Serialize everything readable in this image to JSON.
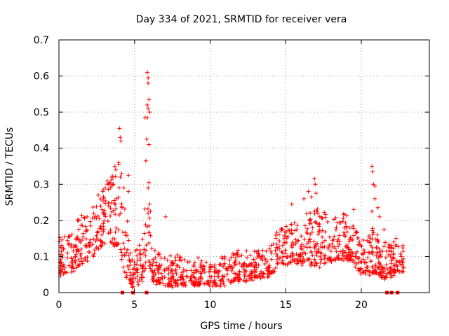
{
  "chart_data": {
    "type": "scatter",
    "title": "Day 334 of 2021, SRMTID for receiver vera",
    "xlabel": "GPS time / hours",
    "ylabel": "SRMTID / TECUs",
    "xlim": [
      0,
      24.5
    ],
    "ylim": [
      0,
      0.7
    ],
    "x_ticks": [
      0,
      5,
      10,
      15,
      20
    ],
    "x_tick_labels": [
      "0",
      "5",
      "10",
      "15",
      "20"
    ],
    "y_ticks": [
      0,
      0.1,
      0.2,
      0.3,
      0.4,
      0.5,
      0.6,
      0.7
    ],
    "y_tick_labels": [
      "0",
      "0.1",
      "0.2",
      "0.3",
      "0.4",
      "0.5",
      "0.6",
      "0.7"
    ],
    "grid": true,
    "marker": "plus",
    "color": "#ff0000",
    "gap_marker_color": "#ff0000",
    "gap_markers_x": [
      4.2,
      4.9,
      5.8,
      21.7,
      22.0,
      22.4
    ],
    "envelope": [
      {
        "x": 0.0,
        "lo": 0.05,
        "hi": 0.15
      },
      {
        "x": 0.5,
        "lo": 0.05,
        "hi": 0.16
      },
      {
        "x": 1.0,
        "lo": 0.06,
        "hi": 0.18
      },
      {
        "x": 1.5,
        "lo": 0.08,
        "hi": 0.22
      },
      {
        "x": 2.0,
        "lo": 0.09,
        "hi": 0.23
      },
      {
        "x": 2.5,
        "lo": 0.11,
        "hi": 0.26
      },
      {
        "x": 3.0,
        "lo": 0.13,
        "hi": 0.3
      },
      {
        "x": 3.5,
        "lo": 0.14,
        "hi": 0.33
      },
      {
        "x": 4.0,
        "lo": 0.12,
        "hi": 0.36
      },
      {
        "x": 4.3,
        "lo": 0.06,
        "hi": 0.3
      },
      {
        "x": 4.7,
        "lo": 0.02,
        "hi": 0.12
      },
      {
        "x": 5.0,
        "lo": 0.02,
        "hi": 0.13
      },
      {
        "x": 5.5,
        "lo": 0.03,
        "hi": 0.15
      },
      {
        "x": 5.8,
        "lo": 0.08,
        "hi": 0.3
      },
      {
        "x": 6.2,
        "lo": 0.03,
        "hi": 0.12
      },
      {
        "x": 7.0,
        "lo": 0.02,
        "hi": 0.11
      },
      {
        "x": 8.0,
        "lo": 0.02,
        "hi": 0.1
      },
      {
        "x": 9.0,
        "lo": 0.02,
        "hi": 0.1
      },
      {
        "x": 10.0,
        "lo": 0.02,
        "hi": 0.08
      },
      {
        "x": 11.0,
        "lo": 0.02,
        "hi": 0.1
      },
      {
        "x": 12.0,
        "lo": 0.03,
        "hi": 0.12
      },
      {
        "x": 13.0,
        "lo": 0.04,
        "hi": 0.12
      },
      {
        "x": 14.0,
        "lo": 0.05,
        "hi": 0.13
      },
      {
        "x": 14.5,
        "lo": 0.07,
        "hi": 0.18
      },
      {
        "x": 15.0,
        "lo": 0.08,
        "hi": 0.2
      },
      {
        "x": 16.0,
        "lo": 0.08,
        "hi": 0.21
      },
      {
        "x": 17.0,
        "lo": 0.07,
        "hi": 0.24
      },
      {
        "x": 18.0,
        "lo": 0.09,
        "hi": 0.21
      },
      {
        "x": 19.0,
        "lo": 0.09,
        "hi": 0.22
      },
      {
        "x": 19.5,
        "lo": 0.08,
        "hi": 0.2
      },
      {
        "x": 20.0,
        "lo": 0.05,
        "hi": 0.13
      },
      {
        "x": 20.5,
        "lo": 0.05,
        "hi": 0.17
      },
      {
        "x": 21.0,
        "lo": 0.06,
        "hi": 0.18
      },
      {
        "x": 21.3,
        "lo": 0.04,
        "hi": 0.12
      },
      {
        "x": 21.8,
        "lo": 0.04,
        "hi": 0.16
      },
      {
        "x": 22.5,
        "lo": 0.06,
        "hi": 0.13
      },
      {
        "x": 22.8,
        "lo": 0.06,
        "hi": 0.14
      }
    ],
    "sample_count": 1300,
    "outliers": [
      {
        "x": 4.0,
        "y": 0.455
      },
      {
        "x": 4.05,
        "y": 0.43
      },
      {
        "x": 4.1,
        "y": 0.42
      },
      {
        "x": 3.7,
        "y": 0.35
      },
      {
        "x": 3.95,
        "y": 0.36
      },
      {
        "x": 4.15,
        "y": 0.33
      },
      {
        "x": 4.6,
        "y": 0.325
      },
      {
        "x": 4.6,
        "y": 0.28
      },
      {
        "x": 4.3,
        "y": 0.29
      },
      {
        "x": 5.85,
        "y": 0.61
      },
      {
        "x": 5.9,
        "y": 0.595
      },
      {
        "x": 5.9,
        "y": 0.58
      },
      {
        "x": 5.95,
        "y": 0.535
      },
      {
        "x": 5.85,
        "y": 0.52
      },
      {
        "x": 5.9,
        "y": 0.51
      },
      {
        "x": 6.0,
        "y": 0.5
      },
      {
        "x": 5.7,
        "y": 0.485
      },
      {
        "x": 5.85,
        "y": 0.485
      },
      {
        "x": 5.8,
        "y": 0.425
      },
      {
        "x": 5.95,
        "y": 0.41
      },
      {
        "x": 5.75,
        "y": 0.365
      },
      {
        "x": 5.95,
        "y": 0.305
      },
      {
        "x": 5.9,
        "y": 0.29
      },
      {
        "x": 6.0,
        "y": 0.245
      },
      {
        "x": 6.05,
        "y": 0.225
      },
      {
        "x": 7.05,
        "y": 0.21
      },
      {
        "x": 16.5,
        "y": 0.28
      },
      {
        "x": 16.9,
        "y": 0.315
      },
      {
        "x": 16.95,
        "y": 0.3
      },
      {
        "x": 17.0,
        "y": 0.275
      },
      {
        "x": 16.7,
        "y": 0.265
      },
      {
        "x": 16.2,
        "y": 0.26
      },
      {
        "x": 15.4,
        "y": 0.245
      },
      {
        "x": 20.7,
        "y": 0.35
      },
      {
        "x": 20.75,
        "y": 0.335
      },
      {
        "x": 20.8,
        "y": 0.3
      },
      {
        "x": 20.9,
        "y": 0.295
      },
      {
        "x": 20.9,
        "y": 0.26
      },
      {
        "x": 21.1,
        "y": 0.235
      },
      {
        "x": 20.7,
        "y": 0.225
      },
      {
        "x": 21.2,
        "y": 0.21
      },
      {
        "x": 2.6,
        "y": 0.27
      },
      {
        "x": 2.9,
        "y": 0.28
      },
      {
        "x": 3.2,
        "y": 0.3
      },
      {
        "x": 3.4,
        "y": 0.29
      },
      {
        "x": 3.6,
        "y": 0.3
      },
      {
        "x": 3.8,
        "y": 0.26
      },
      {
        "x": 21.5,
        "y": 0.175
      },
      {
        "x": 22.3,
        "y": 0.15
      },
      {
        "x": 19.5,
        "y": 0.23
      }
    ]
  }
}
